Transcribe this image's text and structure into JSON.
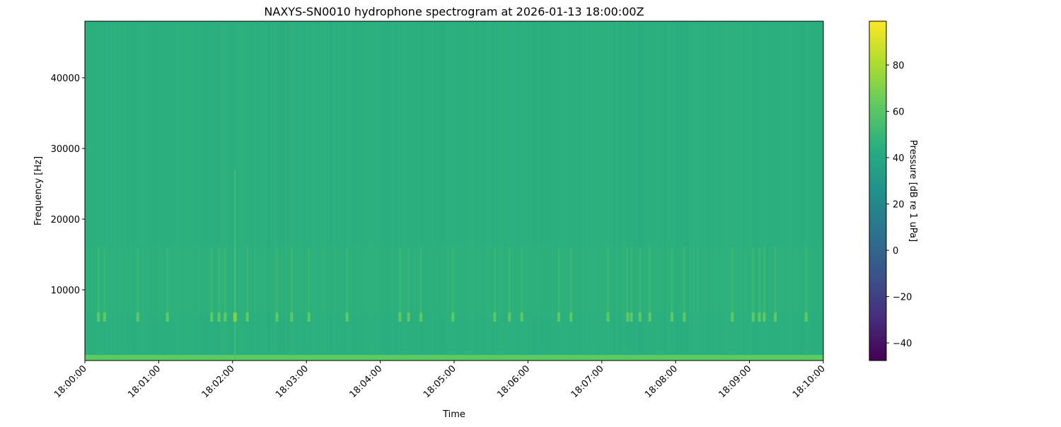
{
  "chart_data": {
    "type": "heatmap",
    "title": "NAXYS-SN0010 hydrophone spectrogram at 2026-01-13 18:00:00Z",
    "xlabel": "Time",
    "ylabel": "Frequency [Hz]",
    "xlim": [
      "18:00:00",
      "18:10:00"
    ],
    "ylim": [
      0,
      48000
    ],
    "xticks": [
      "18:00:00",
      "18:01:00",
      "18:02:00",
      "18:03:00",
      "18:04:00",
      "18:05:00",
      "18:06:00",
      "18:07:00",
      "18:08:00",
      "18:09:00",
      "18:10:00"
    ],
    "yticks": [
      10000,
      20000,
      30000,
      40000
    ],
    "colorbar": {
      "label": "Pressure [dB re 1 uPa]",
      "colormap": "viridis",
      "clim": [
        -47.6,
        98.9
      ],
      "ticks": [
        -40,
        -20,
        0,
        20,
        40,
        60,
        80
      ],
      "tick_labels": [
        "−40",
        "−20",
        "0",
        "20",
        "40",
        "60",
        "80"
      ]
    },
    "background_level_db": 45,
    "low_frequency_band": {
      "freq_range_hz": [
        0,
        500
      ],
      "level_db": 62
    },
    "tonal_band": {
      "freq_range_hz": [
        5500,
        6800
      ],
      "level_db": 62
    },
    "broadband_band": {
      "freq_range_hz": [
        6800,
        16000
      ],
      "level_db": 52
    },
    "transient_events": [
      "18:00:11",
      "18:00:16",
      "18:00:43",
      "18:01:07",
      "18:01:43",
      "18:01:49",
      "18:01:54",
      "18:02:02",
      "18:02:12",
      "18:02:36",
      "18:02:48",
      "18:03:02",
      "18:03:33",
      "18:04:16",
      "18:04:23",
      "18:04:33",
      "18:04:59",
      "18:05:33",
      "18:05:45",
      "18:05:55",
      "18:06:25",
      "18:06:35",
      "18:07:05",
      "18:07:21",
      "18:07:24",
      "18:07:31",
      "18:07:39",
      "18:07:57",
      "18:08:07",
      "18:08:46",
      "18:09:03",
      "18:09:08",
      "18:09:12",
      "18:09:21",
      "18:09:46"
    ],
    "strong_event": {
      "time": "18:02:02",
      "max_freq_hz": 27000
    }
  }
}
